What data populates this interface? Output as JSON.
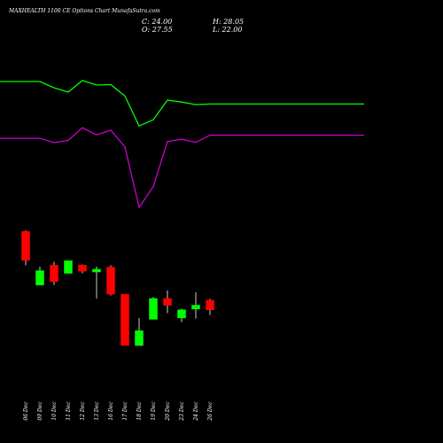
{
  "header": {
    "title": "MAXHEALTH 1100  CE Options  Chart MunafaSutra.com",
    "close": "C: 24.00",
    "open": "O: 27.55",
    "high": "H: 28.05",
    "low": "L: 22.00"
  },
  "colors": {
    "background": "#000000",
    "upper_line": "#00ff00",
    "lower_line": "#cc00cc",
    "bull": "#00ff00",
    "bear": "#ff0000",
    "text": "#ffffff"
  },
  "chart_data": {
    "type": "candlestick",
    "dates": [
      "06 Dec",
      "09 Dec",
      "10 Dec",
      "11 Dec",
      "12 Dec",
      "13 Dec",
      "16 Dec",
      "17 Dec",
      "18 Dec",
      "19 Dec",
      "20 Dec",
      "23 Dec",
      "24 Dec",
      "26 Dec"
    ],
    "candles": [
      {
        "open": 53.0,
        "high": 53.4,
        "low": 40.5,
        "close": 42.3,
        "color": "bear"
      },
      {
        "open": 33.2,
        "high": 40.0,
        "low": 33.2,
        "close": 38.5,
        "color": "bull"
      },
      {
        "open": 40.5,
        "high": 41.8,
        "low": 33.2,
        "close": 34.5,
        "color": "bear"
      },
      {
        "open": 37.5,
        "high": 42.0,
        "low": 37.5,
        "close": 42.2,
        "color": "bull"
      },
      {
        "open": 40.6,
        "high": 40.8,
        "low": 37.5,
        "close": 38.3,
        "color": "bear"
      },
      {
        "open": 38.0,
        "high": 40.0,
        "low": 28.2,
        "close": 39.0,
        "color": "bull"
      },
      {
        "open": 39.8,
        "high": 40.5,
        "low": 29.3,
        "close": 29.8,
        "color": "bear"
      },
      {
        "open": 29.8,
        "high": 29.8,
        "low": 10.8,
        "close": 10.8,
        "color": "bear"
      },
      {
        "open": 10.8,
        "high": 21.0,
        "low": 10.8,
        "close": 16.3,
        "color": "bull"
      },
      {
        "open": 20.5,
        "high": 28.7,
        "low": 20.5,
        "close": 28.2,
        "color": "bull"
      },
      {
        "open": 28.2,
        "high": 31.2,
        "low": 22.8,
        "close": 25.7,
        "color": "bear"
      },
      {
        "open": 21.0,
        "high": 24.5,
        "low": 19.5,
        "close": 24.0,
        "color": "bull"
      },
      {
        "open": 24.3,
        "high": 30.5,
        "low": 20.8,
        "close": 25.7,
        "color": "bull"
      },
      {
        "open": 27.55,
        "high": 28.05,
        "low": 22.0,
        "close": 24.0,
        "color": "bear"
      }
    ],
    "upper_line": [
      95.0,
      95.0,
      91.8,
      89.6,
      95.5,
      93.2,
      93.4,
      87.6,
      72.3,
      75.5,
      85.5,
      84.5,
      83.2,
      83.5
    ],
    "lower_line": [
      66.0,
      66.0,
      63.8,
      65.0,
      71.4,
      67.8,
      70.2,
      61.7,
      30.8,
      41.4,
      64.4,
      65.5,
      64.0,
      67.6
    ]
  }
}
